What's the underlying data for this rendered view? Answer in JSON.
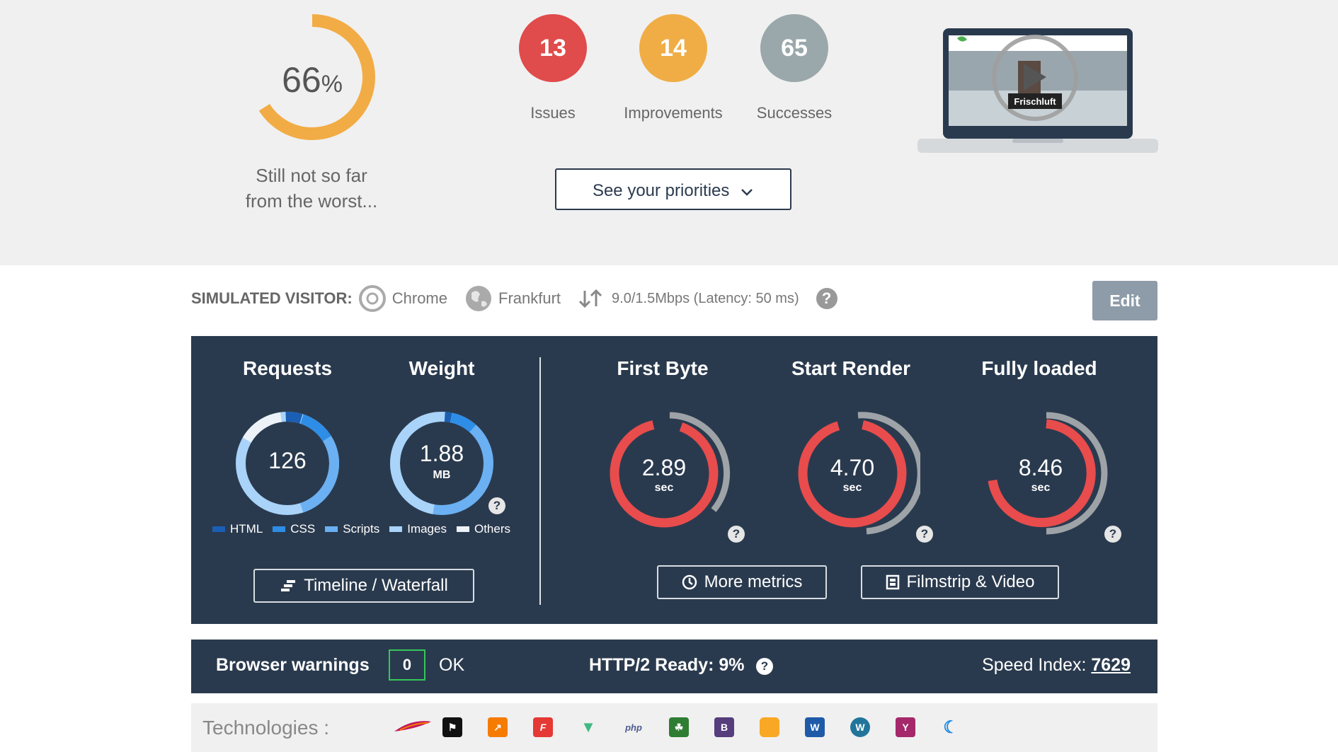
{
  "score": {
    "value": "66",
    "unit": "%",
    "percent": 66,
    "message": [
      "Still not so far",
      "from the worst..."
    ]
  },
  "badges": [
    {
      "count": "13",
      "label": "Issues",
      "color": "#e04b4b"
    },
    {
      "count": "14",
      "label": "Improvements",
      "color": "#f0ad45"
    },
    {
      "count": "65",
      "label": "Successes",
      "color": "#9aa8ab"
    }
  ],
  "priorities_button": "See your priorities",
  "preview": {
    "brand": "Frischluft",
    "icon": "play-icon"
  },
  "visitor": {
    "label": "SIMULATED VISITOR:",
    "browser": "Chrome",
    "location": "Frankfurt",
    "connection": "9.0/1.5Mbps (Latency: 50 ms)",
    "help": "?"
  },
  "edit_button": "Edit",
  "metrics": {
    "requests": {
      "title": "Requests",
      "value": "126"
    },
    "weight": {
      "title": "Weight",
      "value": "1.88",
      "unit": "MB"
    },
    "first_byte": {
      "title": "First Byte",
      "value": "2.89",
      "unit": "sec"
    },
    "start_render": {
      "title": "Start Render",
      "value": "4.70",
      "unit": "sec"
    },
    "fully_loaded": {
      "title": "Fully loaded",
      "value": "8.46",
      "unit": "sec"
    },
    "legend": [
      "HTML",
      "CSS",
      "Scripts",
      "Images",
      "Others"
    ],
    "legend_colors": [
      "#1a5fb4",
      "#2e8de6",
      "#6ab0f3",
      "#a9d3f8",
      "#ecf2f8"
    ],
    "help": "?"
  },
  "buttons": {
    "timeline": "Timeline / Waterfall",
    "more_metrics": "More metrics",
    "filmstrip": "Filmstrip & Video"
  },
  "warnings": {
    "label": "Browser warnings",
    "count": "0",
    "status": "OK",
    "http2": "HTTP/2 Ready: 9%",
    "speed_label": "Speed Index:",
    "speed_value": "7629"
  },
  "technologies": {
    "label": "Technologies :",
    "icons": [
      "apache-icon",
      "flag-icon",
      "analytics-icon",
      "font-icon",
      "vue-icon",
      "php-icon",
      "robot-icon",
      "bootstrap-icon",
      "box-icon",
      "word-icon",
      "wordpress-icon",
      "yoast-icon",
      "moon-icon"
    ]
  }
}
